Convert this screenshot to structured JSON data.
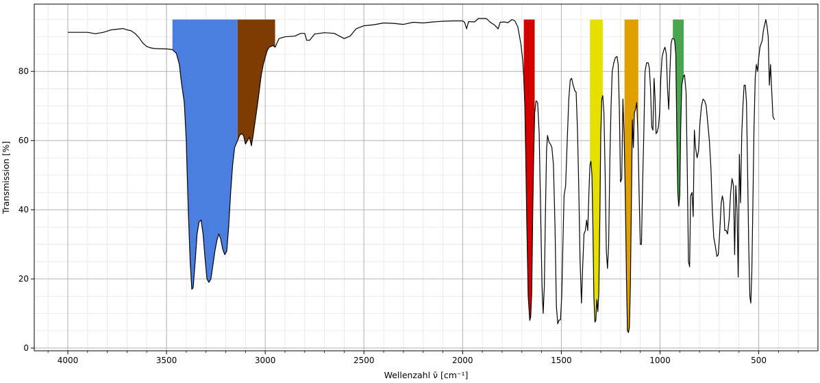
{
  "chart_data": {
    "type": "line",
    "title": "",
    "xlabel": "Wellenzahl ν̄ [cm⁻¹]",
    "ylabel": "Transmission [%]",
    "xlim": [
      4170,
      200
    ],
    "ylim": [
      0,
      100
    ],
    "x_reversed": true,
    "grid": true,
    "x_major_ticks": [
      4000,
      3500,
      3000,
      2500,
      2000,
      1500,
      1000,
      500
    ],
    "y_major_ticks": [
      0,
      20,
      40,
      60,
      80
    ],
    "x_tick_labels": [
      "4000",
      "3500",
      "3000",
      "2500",
      "2000",
      "1500",
      "1000",
      "500"
    ],
    "y_tick_labels": [
      "0",
      "20",
      "40",
      "60",
      "80"
    ],
    "colors": {
      "spectrum_line": "#000000",
      "grid_major": "#b0b0b0",
      "grid_minor": "#e6e6e6"
    },
    "highlight_bands": [
      {
        "from": 3470,
        "to": 3140,
        "color": "#4a7fe0"
      },
      {
        "from": 3140,
        "to": 2950,
        "color": "#7f3c00"
      },
      {
        "from": 1690,
        "to": 1635,
        "color": "#d40000"
      },
      {
        "from": 1355,
        "to": 1290,
        "color": "#e6e000"
      },
      {
        "from": 1180,
        "to": 1110,
        "color": "#e0a000"
      },
      {
        "from": 935,
        "to": 880,
        "color": "#4aa64e"
      }
    ],
    "series": [
      {
        "values": [
          [
            4000,
            91.3
          ],
          [
            3900,
            91.3
          ],
          [
            3860,
            90.9
          ],
          [
            3820,
            91.3
          ],
          [
            3780,
            92.0
          ],
          [
            3750,
            92.2
          ],
          [
            3720,
            92.4
          ],
          [
            3700,
            92.0
          ],
          [
            3680,
            91.8
          ],
          [
            3660,
            91.0
          ],
          [
            3640,
            89.8
          ],
          [
            3620,
            88.2
          ],
          [
            3600,
            87.2
          ],
          [
            3580,
            86.8
          ],
          [
            3560,
            86.6
          ],
          [
            3500,
            86.5
          ],
          [
            3470,
            86.3
          ],
          [
            3450,
            85.2
          ],
          [
            3435,
            82.0
          ],
          [
            3425,
            77.0
          ],
          [
            3410,
            71.0
          ],
          [
            3400,
            60.0
          ],
          [
            3390,
            40.0
          ],
          [
            3380,
            25.0
          ],
          [
            3372,
            17.0
          ],
          [
            3365,
            17.5
          ],
          [
            3355,
            25.0
          ],
          [
            3345,
            33.0
          ],
          [
            3335,
            36.5
          ],
          [
            3325,
            37.0
          ],
          [
            3315,
            33.0
          ],
          [
            3305,
            26.0
          ],
          [
            3295,
            20.0
          ],
          [
            3285,
            19.0
          ],
          [
            3275,
            20.0
          ],
          [
            3265,
            24.0
          ],
          [
            3255,
            28.0
          ],
          [
            3245,
            31.0
          ],
          [
            3235,
            33.0
          ],
          [
            3225,
            31.5
          ],
          [
            3215,
            28.5
          ],
          [
            3205,
            27.0
          ],
          [
            3195,
            28.0
          ],
          [
            3185,
            35.0
          ],
          [
            3175,
            45.0
          ],
          [
            3165,
            53.0
          ],
          [
            3155,
            58.0
          ],
          [
            3140,
            60.0
          ],
          [
            3130,
            61.5
          ],
          [
            3120,
            62.0
          ],
          [
            3110,
            61.5
          ],
          [
            3100,
            59.0
          ],
          [
            3090,
            60.0
          ],
          [
            3080,
            61.0
          ],
          [
            3070,
            58.5
          ],
          [
            3060,
            62.0
          ],
          [
            3050,
            66.0
          ],
          [
            3040,
            70.0
          ],
          [
            3030,
            74.5
          ],
          [
            3020,
            79.0
          ],
          [
            3010,
            82.0
          ],
          [
            3000,
            84.0
          ],
          [
            2990,
            86.0
          ],
          [
            2980,
            87.0
          ],
          [
            2960,
            87.5
          ],
          [
            2950,
            87.0
          ],
          [
            2930,
            89.5
          ],
          [
            2900,
            90.0
          ],
          [
            2850,
            90.2
          ],
          [
            2820,
            91.0
          ],
          [
            2800,
            91.0
          ],
          [
            2790,
            89.0
          ],
          [
            2775,
            89.0
          ],
          [
            2750,
            90.8
          ],
          [
            2700,
            91.2
          ],
          [
            2650,
            91.0
          ],
          [
            2600,
            89.5
          ],
          [
            2570,
            90.2
          ],
          [
            2540,
            92.3
          ],
          [
            2500,
            93.2
          ],
          [
            2450,
            93.5
          ],
          [
            2400,
            94.0
          ],
          [
            2350,
            93.9
          ],
          [
            2300,
            93.6
          ],
          [
            2250,
            94.2
          ],
          [
            2200,
            94.0
          ],
          [
            2150,
            94.3
          ],
          [
            2100,
            94.5
          ],
          [
            2050,
            94.6
          ],
          [
            2000,
            94.6
          ],
          [
            1990,
            94.2
          ],
          [
            1980,
            92.3
          ],
          [
            1970,
            94.4
          ],
          [
            1940,
            94.3
          ],
          [
            1920,
            95.3
          ],
          [
            1880,
            95.3
          ],
          [
            1860,
            94.2
          ],
          [
            1840,
            93.5
          ],
          [
            1820,
            92.3
          ],
          [
            1810,
            94.2
          ],
          [
            1790,
            94.3
          ],
          [
            1770,
            94.1
          ],
          [
            1750,
            95.0
          ],
          [
            1735,
            94.6
          ],
          [
            1720,
            92.8
          ],
          [
            1705,
            88.0
          ],
          [
            1695,
            83.0
          ],
          [
            1690,
            78.0
          ],
          [
            1685,
            70.0
          ],
          [
            1680,
            55.0
          ],
          [
            1675,
            36.0
          ],
          [
            1668,
            15.0
          ],
          [
            1660,
            8.0
          ],
          [
            1655,
            9.0
          ],
          [
            1650,
            16.0
          ],
          [
            1645,
            38.0
          ],
          [
            1640,
            55.0
          ],
          [
            1635,
            68.0
          ],
          [
            1628,
            71.5
          ],
          [
            1620,
            71.0
          ],
          [
            1612,
            62.0
          ],
          [
            1605,
            40.0
          ],
          [
            1598,
            18.0
          ],
          [
            1592,
            10.0
          ],
          [
            1586,
            18.0
          ],
          [
            1580,
            40.0
          ],
          [
            1575,
            57.0
          ],
          [
            1570,
            61.5
          ],
          [
            1562,
            59.5
          ],
          [
            1555,
            59.0
          ],
          [
            1548,
            58.0
          ],
          [
            1540,
            53.0
          ],
          [
            1532,
            35.0
          ],
          [
            1525,
            12.0
          ],
          [
            1518,
            7.0
          ],
          [
            1512,
            8.0
          ],
          [
            1504,
            8.2
          ],
          [
            1498,
            15.0
          ],
          [
            1492,
            30.0
          ],
          [
            1486,
            44.0
          ],
          [
            1478,
            47.0
          ],
          [
            1470,
            60.0
          ],
          [
            1462,
            72.0
          ],
          [
            1455,
            77.5
          ],
          [
            1448,
            78.0
          ],
          [
            1440,
            76.0
          ],
          [
            1432,
            74.5
          ],
          [
            1425,
            74.0
          ],
          [
            1418,
            63.0
          ],
          [
            1412,
            48.0
          ],
          [
            1405,
            25.0
          ],
          [
            1398,
            13.0
          ],
          [
            1392,
            23.0
          ],
          [
            1385,
            33.0
          ],
          [
            1378,
            34.0
          ],
          [
            1372,
            37.0
          ],
          [
            1366,
            34.0
          ],
          [
            1360,
            45.0
          ],
          [
            1355,
            53.0
          ],
          [
            1350,
            54.0
          ],
          [
            1345,
            50.0
          ],
          [
            1340,
            35.0
          ],
          [
            1335,
            15.0
          ],
          [
            1330,
            7.5
          ],
          [
            1325,
            8.0
          ],
          [
            1320,
            14.0
          ],
          [
            1315,
            10.5
          ],
          [
            1310,
            16.0
          ],
          [
            1305,
            38.0
          ],
          [
            1300,
            62.0
          ],
          [
            1295,
            72.0
          ],
          [
            1290,
            73.0
          ],
          [
            1284,
            68.0
          ],
          [
            1278,
            50.0
          ],
          [
            1272,
            28.0
          ],
          [
            1266,
            23.0
          ],
          [
            1260,
            30.0
          ],
          [
            1254,
            55.0
          ],
          [
            1248,
            70.0
          ],
          [
            1242,
            80.0
          ],
          [
            1234,
            82.5
          ],
          [
            1226,
            84.0
          ],
          [
            1218,
            84.3
          ],
          [
            1212,
            82.0
          ],
          [
            1206,
            69.0
          ],
          [
            1200,
            48.0
          ],
          [
            1194,
            49.0
          ],
          [
            1188,
            72.0
          ],
          [
            1182,
            62.0
          ],
          [
            1176,
            44.0
          ],
          [
            1170,
            20.0
          ],
          [
            1165,
            5.0
          ],
          [
            1160,
            4.5
          ],
          [
            1155,
            6.0
          ],
          [
            1150,
            18.0
          ],
          [
            1145,
            42.0
          ],
          [
            1140,
            66.0
          ],
          [
            1135,
            58.0
          ],
          [
            1130,
            68.0
          ],
          [
            1124,
            69.0
          ],
          [
            1118,
            71.0
          ],
          [
            1112,
            62.0
          ],
          [
            1106,
            45.0
          ],
          [
            1100,
            30.0
          ],
          [
            1094,
            30.0
          ],
          [
            1088,
            48.0
          ],
          [
            1082,
            62.0
          ],
          [
            1076,
            80.0
          ],
          [
            1068,
            82.5
          ],
          [
            1060,
            82.5
          ],
          [
            1054,
            81.0
          ],
          [
            1048,
            75.0
          ],
          [
            1042,
            64.0
          ],
          [
            1036,
            63.0
          ],
          [
            1030,
            78.0
          ],
          [
            1025,
            72.0
          ],
          [
            1020,
            62.0
          ],
          [
            1014,
            62.5
          ],
          [
            1008,
            64.0
          ],
          [
            1002,
            68.0
          ],
          [
            996,
            78.0
          ],
          [
            990,
            84.0
          ],
          [
            982,
            86.0
          ],
          [
            975,
            87.0
          ],
          [
            968,
            85.0
          ],
          [
            962,
            75.0
          ],
          [
            956,
            69.0
          ],
          [
            950,
            80.0
          ],
          [
            944,
            88.0
          ],
          [
            938,
            89.5
          ],
          [
            932,
            89.5
          ],
          [
            926,
            89.0
          ],
          [
            920,
            85.0
          ],
          [
            915,
            62.0
          ],
          [
            910,
            45.0
          ],
          [
            905,
            41.0
          ],
          [
            900,
            44.0
          ],
          [
            895,
            64.0
          ],
          [
            890,
            76.0
          ],
          [
            882,
            78.5
          ],
          [
            876,
            79.0
          ],
          [
            868,
            74.0
          ],
          [
            862,
            52.0
          ],
          [
            856,
            25.0
          ],
          [
            850,
            23.5
          ],
          [
            845,
            44.0
          ],
          [
            838,
            45.0
          ],
          [
            832,
            38.0
          ],
          [
            826,
            63.0
          ],
          [
            820,
            58.0
          ],
          [
            812,
            55.0
          ],
          [
            805,
            57.0
          ],
          [
            798,
            65.0
          ],
          [
            790,
            70.0
          ],
          [
            782,
            72.0
          ],
          [
            774,
            71.5
          ],
          [
            766,
            70.0
          ],
          [
            758,
            65.0
          ],
          [
            750,
            60.0
          ],
          [
            742,
            52.0
          ],
          [
            735,
            40.0
          ],
          [
            728,
            32.0
          ],
          [
            720,
            29.5
          ],
          [
            712,
            26.5
          ],
          [
            705,
            27.0
          ],
          [
            698,
            33.0
          ],
          [
            690,
            42.0
          ],
          [
            684,
            44.0
          ],
          [
            678,
            42.0
          ],
          [
            672,
            34.0
          ],
          [
            665,
            34.0
          ],
          [
            658,
            33.0
          ],
          [
            650,
            37.0
          ],
          [
            642,
            45.0
          ],
          [
            635,
            49.0
          ],
          [
            628,
            47.0
          ],
          [
            622,
            27.0
          ],
          [
            616,
            47.0
          ],
          [
            610,
            40.0
          ],
          [
            604,
            20.5
          ],
          [
            598,
            56.0
          ],
          [
            592,
            42.0
          ],
          [
            586,
            62.0
          ],
          [
            580,
            70.0
          ],
          [
            574,
            76.0
          ],
          [
            568,
            76.0
          ],
          [
            562,
            71.0
          ],
          [
            556,
            50.0
          ],
          [
            550,
            28.0
          ],
          [
            545,
            15.0
          ],
          [
            540,
            13.0
          ],
          [
            535,
            22.0
          ],
          [
            530,
            40.0
          ],
          [
            524,
            63.0
          ],
          [
            518,
            78.0
          ],
          [
            512,
            82.0
          ],
          [
            506,
            80.0
          ],
          [
            500,
            84.0
          ],
          [
            494,
            87.0
          ],
          [
            488,
            88.0
          ],
          [
            482,
            89.0
          ],
          [
            476,
            92.0
          ],
          [
            470,
            93.5
          ],
          [
            464,
            95.0
          ],
          [
            458,
            93.0
          ],
          [
            452,
            90.0
          ],
          [
            446,
            76.0
          ],
          [
            440,
            82.0
          ],
          [
            434,
            74.0
          ],
          [
            428,
            67.0
          ],
          [
            420,
            66.0
          ]
        ]
      }
    ]
  }
}
